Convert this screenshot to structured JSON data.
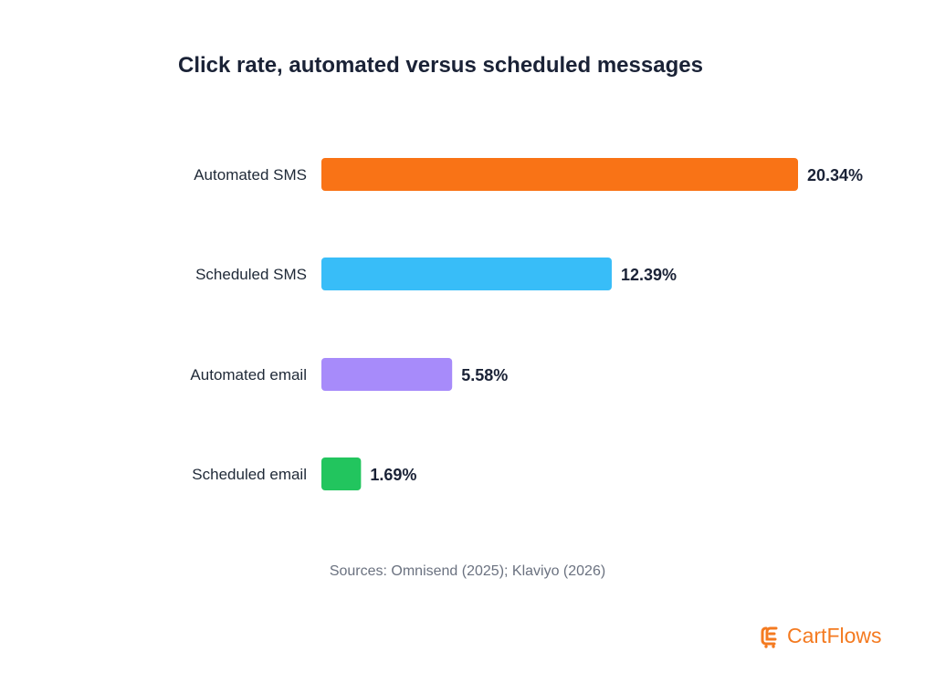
{
  "chart_data": {
    "type": "bar",
    "orientation": "horizontal",
    "title": "Click rate, automated versus scheduled messages",
    "categories": [
      "Automated SMS",
      "Scheduled SMS",
      "Automated email",
      "Scheduled email"
    ],
    "values": [
      20.34,
      12.39,
      5.58,
      1.69
    ],
    "value_labels": [
      "20.34%",
      "12.39%",
      "5.58%",
      "1.69%"
    ],
    "bar_colors": [
      "#f97316",
      "#38bdf8",
      "#a78bfa",
      "#22c55e"
    ],
    "xlim": [
      0,
      20.34
    ],
    "grid": false,
    "legend": "none"
  },
  "source": "Sources: Omnisend (2025); Klaviyo (2026)",
  "brand": {
    "name": "CartFlows",
    "icon": "cartflows-logo-icon",
    "color": "#f47a20"
  }
}
